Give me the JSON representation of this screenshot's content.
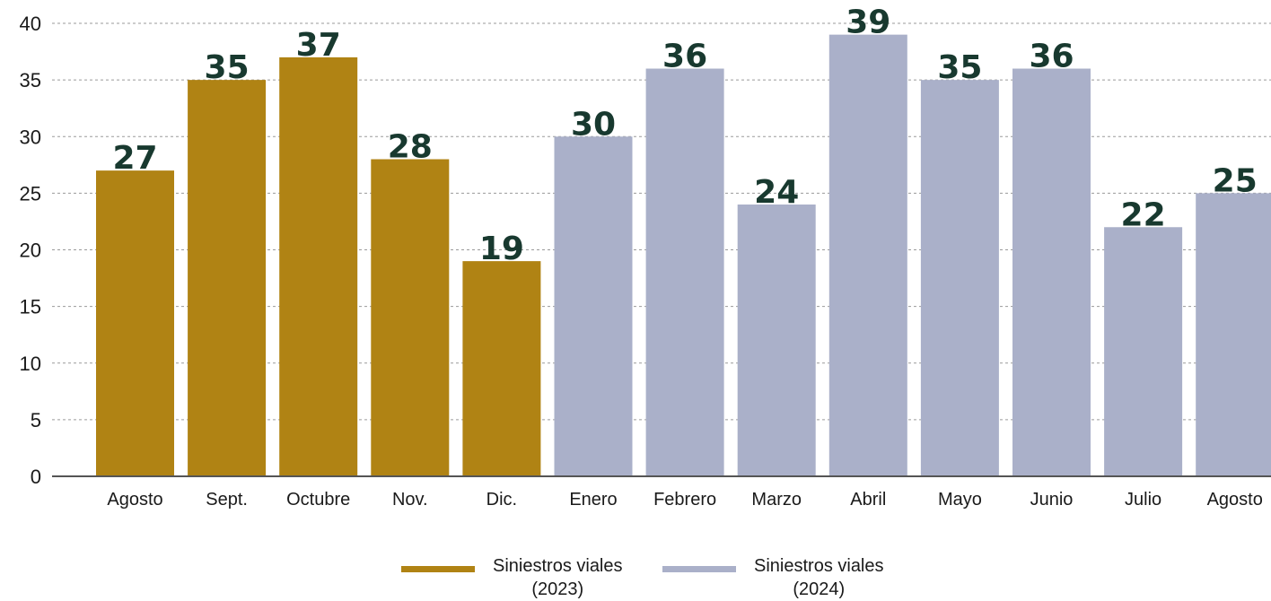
{
  "chart_data": {
    "type": "bar",
    "categories": [
      "Agosto",
      "Sept.",
      "Octubre",
      "Nov.",
      "Dic.",
      "Enero",
      "Febrero",
      "Marzo",
      "Abril",
      "Mayo",
      "Junio",
      "Julio",
      "Agosto"
    ],
    "values": [
      27,
      35,
      37,
      28,
      19,
      30,
      36,
      24,
      39,
      35,
      36,
      22,
      25
    ],
    "series_index": [
      0,
      0,
      0,
      0,
      0,
      1,
      1,
      1,
      1,
      1,
      1,
      1,
      1
    ],
    "series": [
      {
        "name": "Siniestros viales\n(2023)",
        "color": "#b08314"
      },
      {
        "name": "Siniestros viales\n(2024)",
        "color": "#aab0c9"
      }
    ],
    "ylim": [
      0,
      40
    ],
    "yticks": [
      0,
      5,
      10,
      15,
      20,
      25,
      30,
      35,
      40
    ],
    "grid": true,
    "legend_position": "bottom-center",
    "title": "",
    "xlabel": "",
    "ylabel": ""
  }
}
